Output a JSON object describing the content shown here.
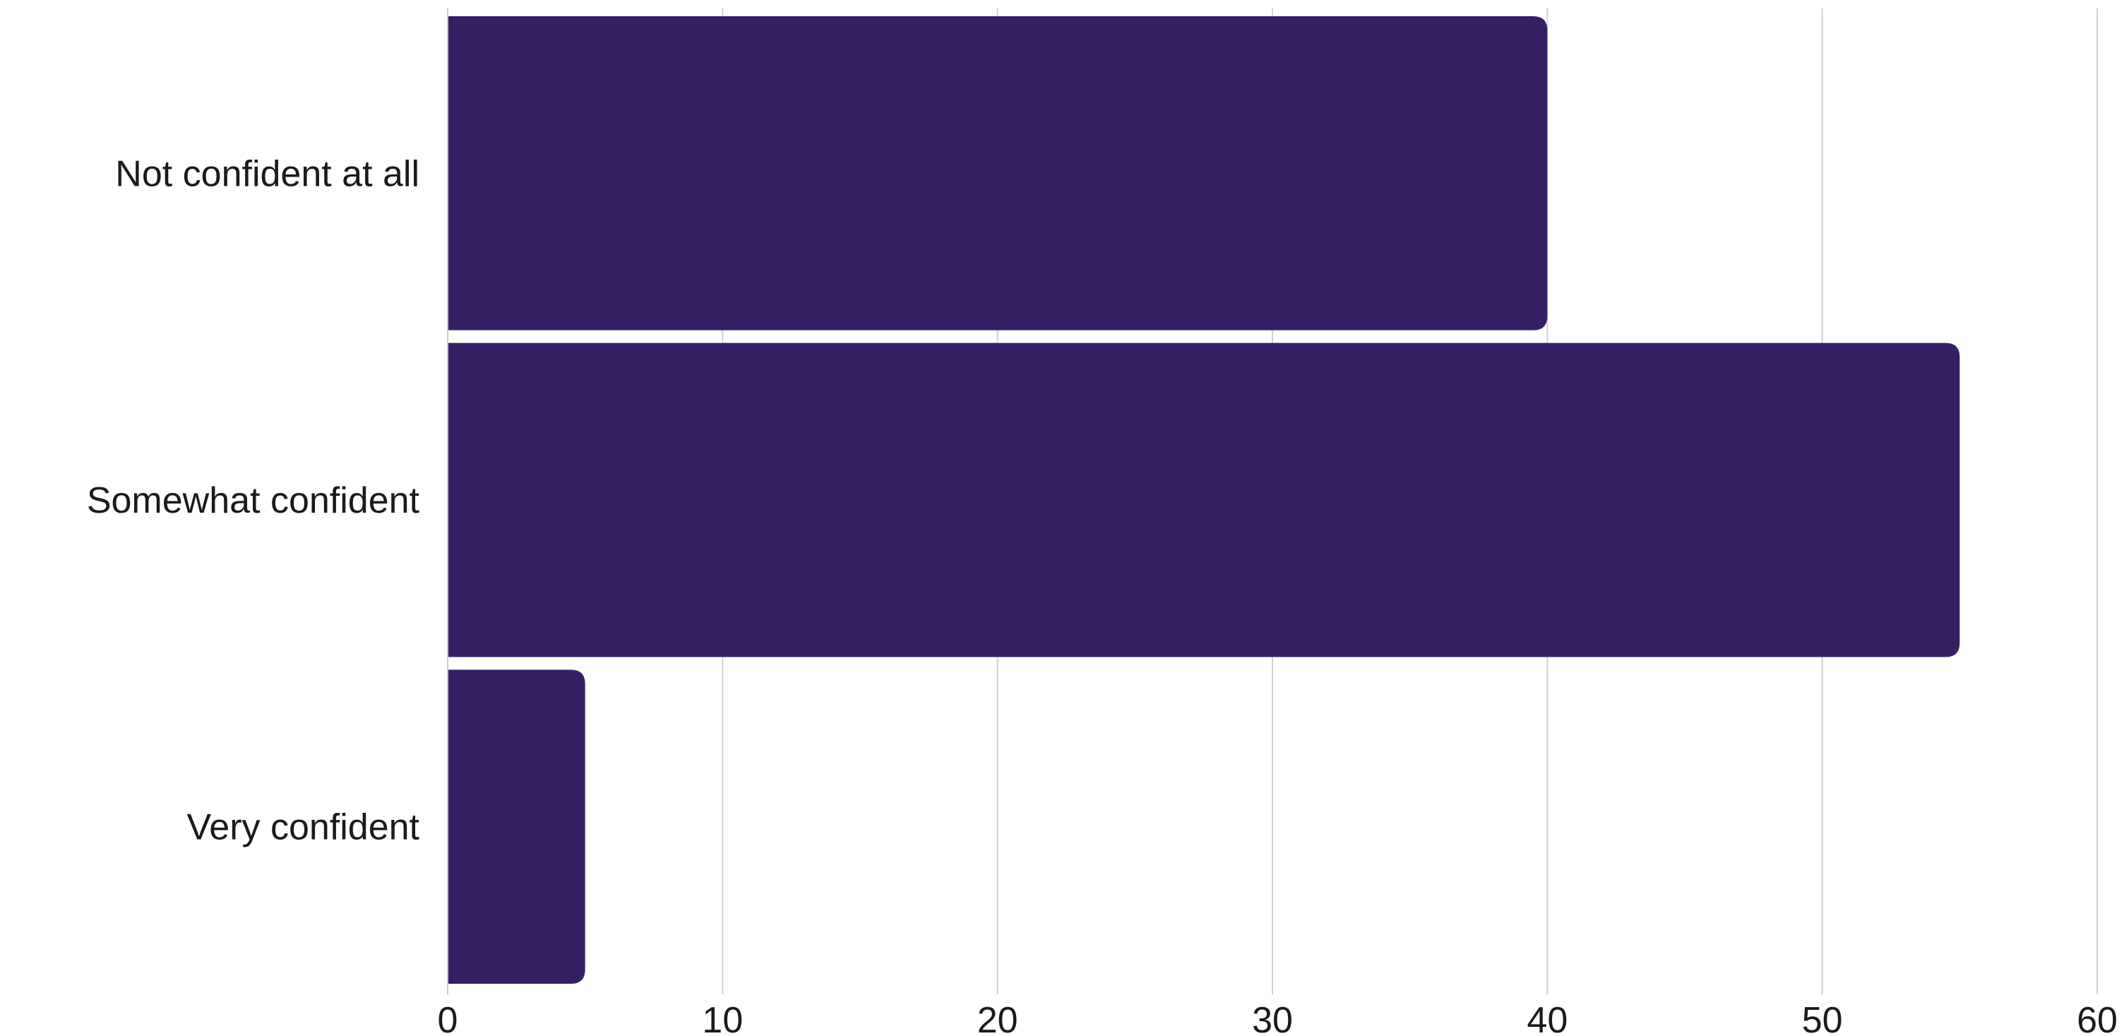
{
  "chart_data": {
    "type": "bar",
    "orientation": "horizontal",
    "categories": [
      "Not confident at all",
      "Somewhat confident",
      "Very confident"
    ],
    "values": [
      40,
      55,
      5
    ],
    "xlim": [
      0,
      60
    ],
    "xticks": [
      0,
      10,
      20,
      30,
      40,
      50,
      60
    ],
    "grid": true,
    "title": "",
    "xlabel": "",
    "ylabel": "",
    "bar_color": "#352066"
  }
}
